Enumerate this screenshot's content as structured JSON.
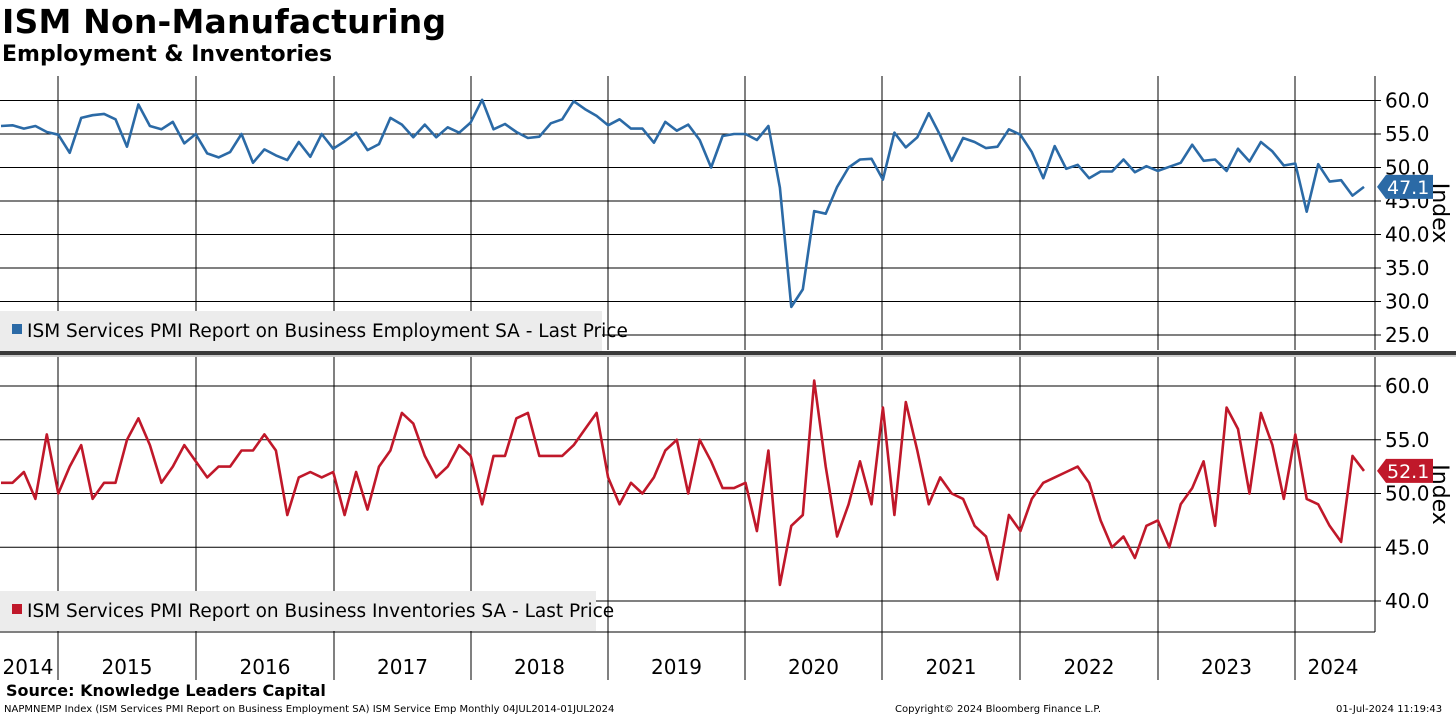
{
  "title": "ISM Non-Manufacturing",
  "subtitle": "Employment & Inventories",
  "source": "Source: Knowledge Leaders Capital",
  "footer": {
    "left": "NAPMNEMP Index (ISM Services PMI Report on Business Employment SA) ISM Service Emp  Monthly 04JUL2014-01JUL2024",
    "center": "Copyright© 2024 Bloomberg Finance L.P.",
    "right": "01-Jul-2024 11:19:43"
  },
  "chart_data": [
    {
      "type": "line",
      "title": "ISM Services PMI Report on Business Employment SA - Last Price",
      "legend": "ISM Services PMI Report on Business Employment SA - Last Price",
      "ylabel": "Index",
      "ylim": [
        22.5,
        64
      ],
      "yticks": [
        "60.0",
        "55.0",
        "50.0",
        "45.0",
        "40.0",
        "35.0",
        "30.0",
        "25.0"
      ],
      "yticks_values": [
        60,
        55,
        50,
        45,
        40,
        35,
        30,
        25
      ],
      "color": "#2b6aa6",
      "last_value": "47.1",
      "x_start": 2014.51,
      "x_step": 0.08333,
      "values": [
        56.2,
        56.3,
        55.8,
        56.2,
        55.3,
        54.9,
        52.2,
        57.4,
        57.8,
        58.0,
        57.2,
        53.1,
        59.4,
        56.2,
        55.7,
        56.8,
        53.6,
        55.0,
        52.1,
        51.5,
        52.3,
        55.0,
        50.7,
        52.7,
        51.8,
        51.1,
        53.8,
        51.6,
        55.0,
        52.8,
        53.9,
        55.2,
        52.6,
        53.5,
        57.4,
        56.4,
        54.5,
        56.4,
        54.5,
        56.0,
        55.2,
        56.7,
        60.1,
        55.7,
        56.5,
        55.3,
        54.4,
        54.6,
        56.6,
        57.2,
        59.9,
        58.7,
        57.7,
        56.3,
        57.2,
        55.8,
        55.8,
        53.7,
        56.8,
        55.5,
        56.4,
        54.1,
        50.0,
        54.7,
        55.0,
        55.0,
        54.1,
        56.2,
        47.0,
        29.2,
        31.8,
        43.5,
        43.1,
        47.1,
        50.0,
        51.2,
        51.3,
        48.2,
        55.2,
        53.0,
        54.5,
        58.1,
        54.8,
        51.0,
        54.4,
        53.8,
        52.9,
        53.1,
        55.7,
        54.9,
        52.3,
        48.4,
        53.2,
        49.8,
        50.4,
        48.4,
        49.4,
        49.4,
        51.2,
        49.3,
        50.2,
        49.5,
        50.1,
        50.7,
        53.4,
        51.0,
        51.2,
        49.5,
        52.8,
        50.9,
        53.8,
        52.4,
        50.3,
        50.6,
        43.4,
        50.5,
        47.9,
        48.1,
        45.8,
        47.1
      ]
    },
    {
      "type": "line",
      "title": "ISM Services PMI Report on Business Inventories SA - Last Price",
      "legend": "ISM Services PMI Report on Business Inventories SA - Last Price",
      "ylabel": "Index",
      "ylim": [
        37.5,
        63
      ],
      "yticks": [
        "60.0",
        "55.0",
        "50.0",
        "45.0",
        "40.0"
      ],
      "yticks_values": [
        60,
        55,
        50,
        45,
        40
      ],
      "color": "#c0182a",
      "last_value": "52.1",
      "x_start": 2014.51,
      "x_step": 0.08333,
      "values": [
        51.0,
        51.0,
        52.0,
        49.5,
        55.5,
        50.0,
        52.5,
        54.5,
        49.5,
        51.0,
        51.0,
        55.0,
        57.0,
        54.5,
        51.0,
        52.5,
        54.5,
        53.0,
        51.5,
        52.5,
        52.5,
        54.0,
        54.0,
        55.5,
        54.0,
        48.0,
        51.5,
        52.0,
        51.5,
        52.0,
        48.0,
        52.0,
        48.5,
        52.5,
        54.0,
        57.5,
        56.5,
        53.5,
        51.5,
        52.5,
        54.5,
        53.5,
        49.0,
        53.5,
        53.5,
        57.0,
        57.5,
        53.5,
        53.5,
        53.5,
        54.5,
        56.0,
        57.5,
        51.5,
        49.0,
        51.0,
        50.0,
        51.5,
        54.0,
        55.0,
        50.0,
        55.0,
        53.0,
        50.5,
        50.5,
        51.0,
        46.5,
        54.0,
        41.5,
        47.0,
        48.0,
        60.5,
        52.5,
        46.0,
        49.0,
        53.0,
        49.0,
        58.0,
        48.0,
        58.5,
        54.0,
        49.0,
        51.5,
        50.0,
        49.5,
        47.0,
        46.0,
        42.0,
        48.0,
        46.5,
        49.5,
        51.0,
        51.5,
        52.0,
        52.5,
        51.0,
        47.5,
        45.0,
        46.0,
        44.0,
        47.0,
        47.5,
        45.0,
        49.0,
        50.5,
        53.0,
        47.0,
        58.0,
        56.0,
        50.0,
        57.5,
        54.5,
        49.5,
        55.5,
        49.5,
        49.0,
        47.0,
        45.5,
        53.5,
        52.1
      ]
    }
  ],
  "x_axis": {
    "labels": [
      "2014",
      "2015",
      "2016",
      "2017",
      "2018",
      "2019",
      "2020",
      "2021",
      "2022",
      "2023",
      "2024"
    ]
  }
}
